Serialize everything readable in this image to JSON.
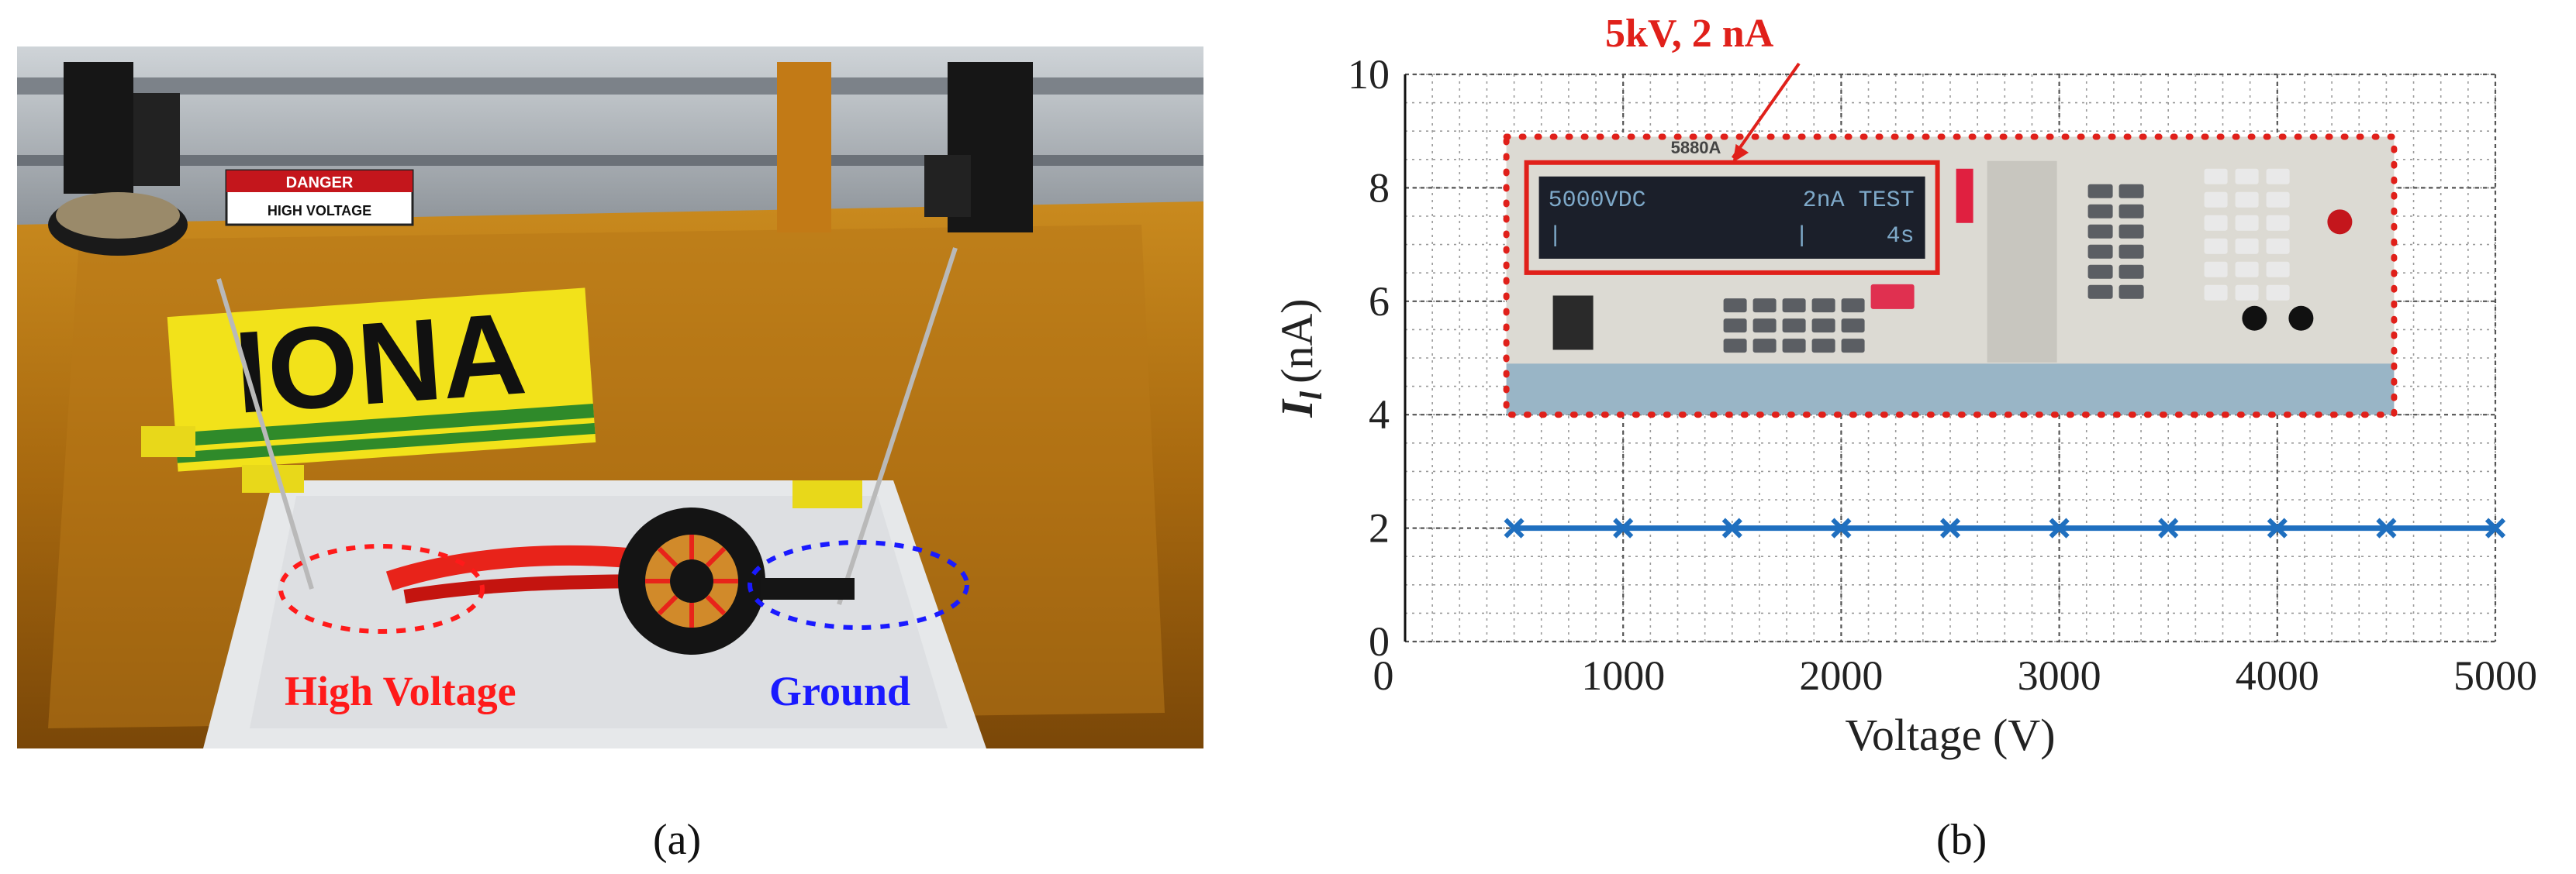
{
  "panel_a": {
    "caption": "(a)",
    "hv_label": "High Voltage",
    "ground_label": "Ground",
    "hv_color": "#ff1a1a",
    "ground_color": "#1a1aff",
    "tape_text": "IONA",
    "danger_text": "DANGER",
    "hv_sign_text": "HIGH VOLTAGE"
  },
  "panel_b": {
    "caption": "(b)",
    "annotation": "5kV, 2 nA",
    "annotation_color": "#e0201a",
    "instrument": {
      "brand": "5880A",
      "display_line1_left": "5000VDC",
      "display_line1_right": "2nA TEST",
      "display_line2_left": "|",
      "display_line2_mid": "|",
      "display_line2_right": "4s"
    }
  },
  "chart_data": {
    "type": "line",
    "xlabel": "Voltage (V)",
    "ylabel_symbol": "I",
    "ylabel_subscript": "l",
    "ylabel_unit": "(nA)",
    "xlim": [
      0,
      5000
    ],
    "ylim": [
      0,
      10
    ],
    "xticks": [
      "0",
      "1000",
      "2000",
      "3000",
      "4000",
      "5000"
    ],
    "yticks": [
      "0",
      "2",
      "4",
      "6",
      "8",
      "10"
    ],
    "grid": true,
    "series": [
      {
        "color": "#1f6fbf",
        "marker": "x",
        "x": [
          500,
          1000,
          1500,
          2000,
          2500,
          3000,
          3500,
          4000,
          4500,
          5000
        ],
        "y": [
          2,
          2,
          2,
          2,
          2,
          2,
          2,
          2,
          2,
          2
        ]
      }
    ]
  }
}
